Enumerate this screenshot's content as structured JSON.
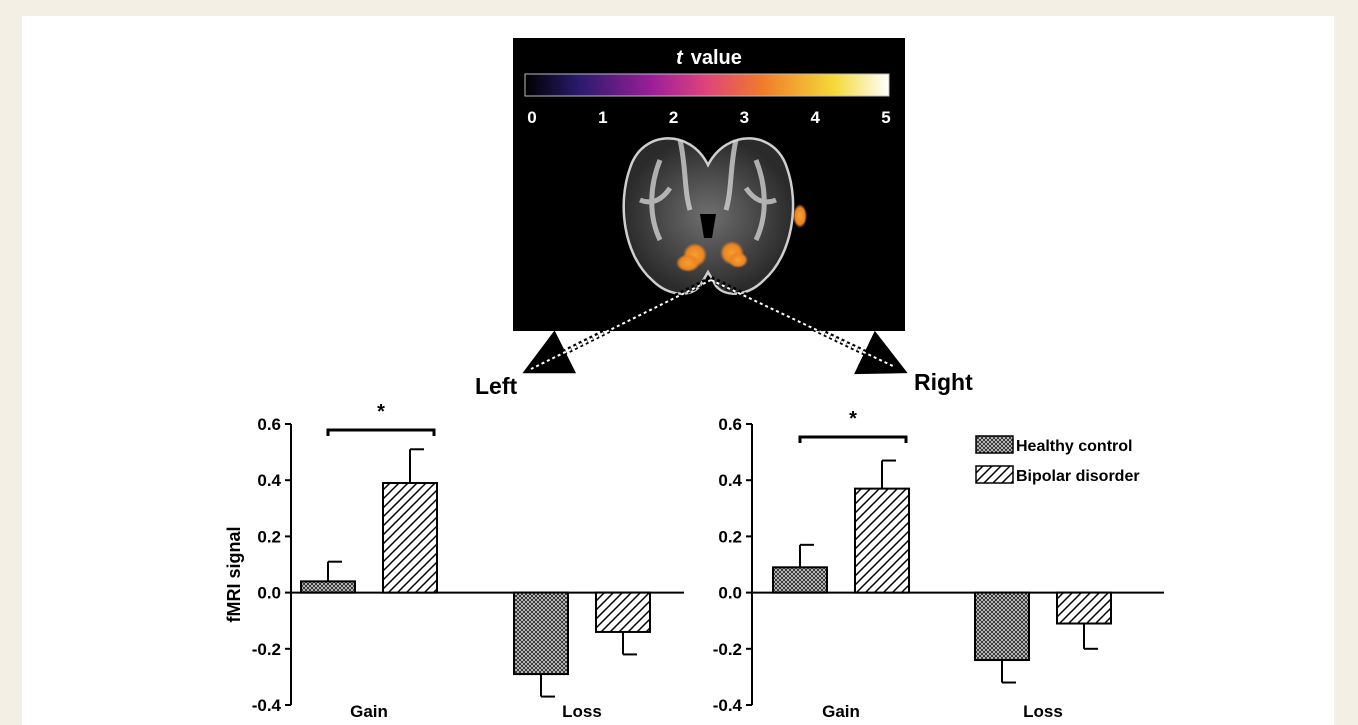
{
  "colorbar": {
    "title_italic": "t",
    "title_rest": "value",
    "ticks": [
      "0",
      "1",
      "2",
      "3",
      "4",
      "5"
    ]
  },
  "panel_labels": {
    "left": "Left",
    "right": "Right"
  },
  "significance_marker": "*",
  "colors": {
    "background_frame": "#f3efe4",
    "panel": "#ffffff",
    "brain_background": "#000000",
    "colorbar_stops": [
      "#000000",
      "#2a1b6e",
      "#9b1e9a",
      "#e0447a",
      "#f07a2a",
      "#f5d93a",
      "#ffffff"
    ],
    "bar_fill": "#ffffff",
    "bar_stroke": "#000000"
  },
  "chart_data": [
    {
      "type": "bar",
      "panel": "Left",
      "categories": [
        "Gain",
        "Loss"
      ],
      "ylabel": "fMRI signal",
      "ylim": [
        -0.4,
        0.6
      ],
      "yticks": [
        "0.6",
        "0.4",
        "0.2",
        "0.0",
        "-0.2",
        "-0.4"
      ],
      "series": [
        {
          "name": "Healthy control",
          "pattern": "crosshatch",
          "values": [
            0.04,
            -0.29
          ],
          "errors": [
            0.07,
            0.08
          ]
        },
        {
          "name": "Bipolar disorder",
          "pattern": "diagonal",
          "values": [
            0.39,
            -0.14
          ],
          "errors": [
            0.12,
            0.08
          ]
        }
      ],
      "annotations": [
        {
          "text": "*",
          "between": "Gain"
        }
      ]
    },
    {
      "type": "bar",
      "panel": "Right",
      "categories": [
        "Gain",
        "Loss"
      ],
      "ylabel": "",
      "ylim": [
        -0.4,
        0.6
      ],
      "yticks": [
        "0.6",
        "0.4",
        "0.2",
        "0.0",
        "-0.2",
        "-0.4"
      ],
      "series": [
        {
          "name": "Healthy control",
          "pattern": "crosshatch",
          "values": [
            0.09,
            -0.24
          ],
          "errors": [
            0.08,
            0.08
          ]
        },
        {
          "name": "Bipolar disorder",
          "pattern": "diagonal",
          "values": [
            0.37,
            -0.11
          ],
          "errors": [
            0.1,
            0.09
          ]
        }
      ],
      "annotations": [
        {
          "text": "*",
          "between": "Gain"
        }
      ],
      "legend": {
        "placement": "top-right",
        "entries": [
          "Healthy control",
          "Bipolar disorder"
        ]
      }
    }
  ]
}
